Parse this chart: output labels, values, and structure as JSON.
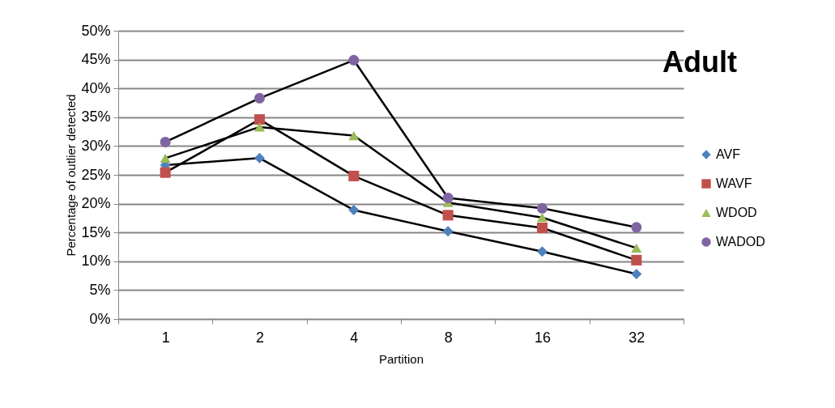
{
  "chart_data": {
    "type": "line",
    "title": "Adult",
    "xlabel": "Partition",
    "ylabel": "Percentage of outlier detected",
    "categories": [
      "1",
      "2",
      "4",
      "8",
      "16",
      "32"
    ],
    "series": [
      {
        "name": "AVF",
        "color": "#4f81bd",
        "marker": "diamond",
        "values": [
          26.7,
          27.9,
          18.9,
          15.2,
          11.7,
          7.8
        ]
      },
      {
        "name": "WAVF",
        "color": "#c0504d",
        "marker": "square",
        "values": [
          25.4,
          34.6,
          24.8,
          18.0,
          15.8,
          10.2
        ]
      },
      {
        "name": "WDOD",
        "color": "#9bbb59",
        "marker": "triangle",
        "values": [
          27.9,
          33.3,
          31.8,
          20.2,
          17.6,
          12.3
        ]
      },
      {
        "name": "WADOD",
        "color": "#8064a2",
        "marker": "circle",
        "values": [
          30.7,
          38.3,
          44.9,
          21.0,
          19.2,
          15.9
        ]
      }
    ],
    "ylim": [
      0,
      50
    ],
    "yticks": [
      {
        "value": 0,
        "label": "0%"
      },
      {
        "value": 5,
        "label": "5%"
      },
      {
        "value": 10,
        "label": "10%"
      },
      {
        "value": 15,
        "label": "15%"
      },
      {
        "value": 20,
        "label": "20%"
      },
      {
        "value": 25,
        "label": "25%"
      },
      {
        "value": 30,
        "label": "30%"
      },
      {
        "value": 35,
        "label": "35%"
      },
      {
        "value": 40,
        "label": "40%"
      },
      {
        "value": 45,
        "label": "45%"
      },
      {
        "value": 50,
        "label": "50%"
      }
    ],
    "grid": "y",
    "legend": "right",
    "line_style": "solid"
  }
}
